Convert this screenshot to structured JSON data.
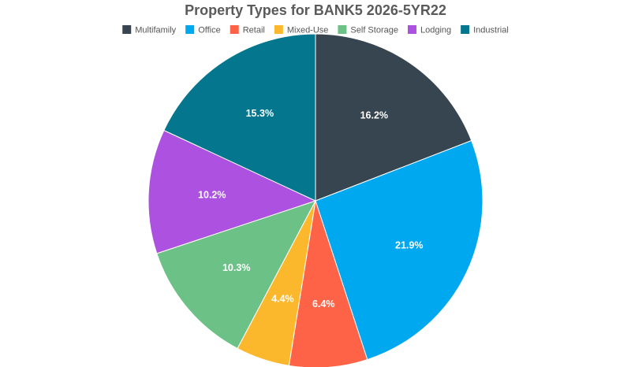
{
  "chart_data": {
    "type": "pie",
    "title": "Property Types for BANK5 2026-5YR22",
    "legend_position": "top",
    "categories": [
      "Multifamily",
      "Office",
      "Retail",
      "Mixed-Use",
      "Self Storage",
      "Lodging",
      "Industrial"
    ],
    "values": [
      16.2,
      21.9,
      6.4,
      4.4,
      10.3,
      10.2,
      15.3
    ],
    "labels": [
      "16.2%",
      "21.9%",
      "6.4%",
      "4.4%",
      "10.3%",
      "10.2%",
      "15.3%"
    ],
    "colors": [
      "#36454f",
      "#00a8f0",
      "#ff6347",
      "#fbb82d",
      "#6cc187",
      "#ad52e0",
      "#04778f"
    ]
  }
}
